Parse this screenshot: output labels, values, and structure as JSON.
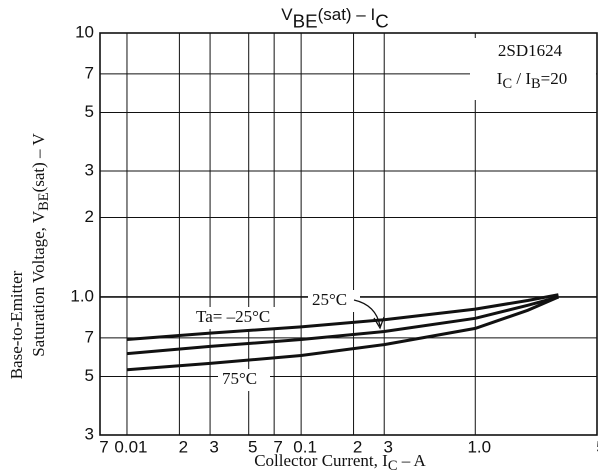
{
  "chart_data": {
    "type": "line",
    "title": [
      {
        "t": "V"
      },
      {
        "t": "BE",
        "sub": true
      },
      {
        "t": "(sat)  –  I"
      },
      {
        "t": "C",
        "sub": true
      }
    ],
    "ylabel": [
      [
        {
          "t": "Base-to-Emitter"
        }
      ],
      [
        {
          "t": "Saturation Voltage, V"
        },
        {
          "t": "BE",
          "sub": true
        },
        {
          "t": "(sat)  –  V"
        }
      ]
    ],
    "xlabel": [
      {
        "t": "Collector Current, I"
      },
      {
        "t": "C",
        "sub": true
      },
      {
        "t": "  –  A"
      }
    ],
    "annotations": [
      [
        {
          "t": "2SD1624"
        }
      ],
      [
        {
          "t": "I"
        },
        {
          "t": "C",
          "sub": true
        },
        {
          "t": " / I"
        },
        {
          "t": "B",
          "sub": true
        },
        {
          "t": "=20"
        }
      ]
    ],
    "log_x": true,
    "log_y": true,
    "grid": true,
    "xlim": [
      0.007,
      5
    ],
    "ylim": [
      0.3,
      10
    ],
    "xticks": [
      {
        "value": 0.007,
        "label": "7"
      },
      0.01,
      {
        "value": 0.02,
        "label": "2"
      },
      {
        "value": 0.03,
        "label": "3"
      },
      {
        "value": 0.05,
        "label": "5"
      },
      {
        "value": 0.07,
        "label": "7"
      },
      0.1,
      2,
      3,
      5,
      7,
      {
        "value": 1,
        "label": "1.0"
      }
    ],
    "yticks": [
      {
        "value": 0.3,
        "label": "3"
      },
      {
        "value": 0.5,
        "label": "5"
      },
      {
        "value": 0.7,
        "label": "7"
      },
      {
        "value": 1,
        "label": "1.0"
      },
      2,
      3,
      5,
      7,
      10
    ],
    "x": [
      0.01,
      0.03,
      0.1,
      0.3,
      1,
      2,
      3
    ],
    "series": [
      {
        "name": "Ta= –25°C",
        "color": "#111111",
        "values": [
          0.69,
          0.73,
          0.77,
          0.82,
          0.9,
          0.97,
          1.02
        ]
      },
      {
        "name": "25°C",
        "color": "#111111",
        "values": [
          0.61,
          0.65,
          0.69,
          0.74,
          0.83,
          0.93,
          1.0
        ]
      },
      {
        "name": "75°C",
        "color": "#111111",
        "values": [
          0.53,
          0.56,
          0.6,
          0.66,
          0.76,
          0.89,
          1.0
        ]
      }
    ]
  }
}
